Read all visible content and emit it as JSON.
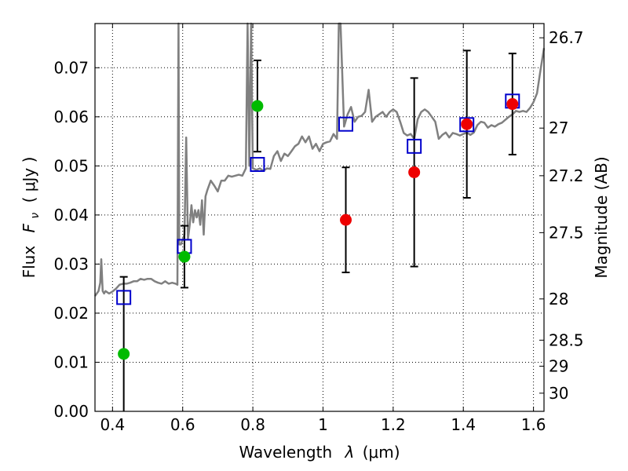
{
  "chart_data": {
    "type": "scatter",
    "title": "",
    "xlabel_prefix": "Wavelength",
    "xlabel_symbol": "λ",
    "xlabel_unit": "(μm)",
    "ylabel_prefix": "Flux",
    "ylabel_symbol": "F",
    "ylabel_sub": "ν",
    "ylabel_unit": "( μJy )",
    "y2label": "Magnitude (AB)",
    "xlim": [
      0.35,
      1.63
    ],
    "ylim": [
      0.0,
      0.079
    ],
    "grid": true,
    "x_ticks": [
      0.4,
      0.6,
      0.8,
      1.0,
      1.2,
      1.4,
      1.6
    ],
    "x_tick_labels": [
      "0.4",
      "0.6",
      "0.8",
      "1",
      "1.2",
      "1.4",
      "1.6"
    ],
    "y_ticks": [
      0.0,
      0.01,
      0.02,
      0.03,
      0.04,
      0.05,
      0.06,
      0.07
    ],
    "y_tick_labels": [
      "0.00",
      "0.01",
      "0.02",
      "0.03",
      "0.04",
      "0.05",
      "0.06",
      "0.07"
    ],
    "y2_ticks": [
      {
        "label": "26.7",
        "flux": 0.0761
      },
      {
        "label": "27",
        "flux": 0.0577
      },
      {
        "label": "27.2",
        "flux": 0.048
      },
      {
        "label": "27.5",
        "flux": 0.0364
      },
      {
        "label": "28",
        "flux": 0.0229
      },
      {
        "label": "28.5",
        "flux": 0.0145
      },
      {
        "label": "29",
        "flux": 0.0092
      },
      {
        "label": "30",
        "flux": 0.0037
      }
    ],
    "colors": {
      "model_line": "#808080",
      "model_points": "#0000cc",
      "ground_points": "#00bb00",
      "hst_points": "#ee0000",
      "error_bars": "#000000"
    },
    "series": [
      {
        "marker": "line",
        "x": [
          0.35,
          0.36,
          0.365,
          0.368,
          0.372,
          0.376,
          0.38,
          0.39,
          0.4,
          0.41,
          0.42,
          0.43,
          0.44,
          0.45,
          0.46,
          0.47,
          0.48,
          0.49,
          0.5,
          0.51,
          0.52,
          0.53,
          0.54,
          0.55,
          0.56,
          0.57,
          0.58,
          0.585,
          0.588,
          0.59,
          0.595,
          0.6,
          0.605,
          0.61,
          0.615,
          0.62,
          0.625,
          0.63,
          0.635,
          0.64,
          0.645,
          0.65,
          0.655,
          0.66,
          0.665,
          0.67,
          0.68,
          0.69,
          0.7,
          0.71,
          0.72,
          0.73,
          0.74,
          0.75,
          0.76,
          0.77,
          0.78,
          0.785,
          0.79,
          0.795,
          0.8,
          0.81,
          0.82,
          0.83,
          0.84,
          0.85,
          0.86,
          0.87,
          0.88,
          0.89,
          0.9,
          0.91,
          0.92,
          0.93,
          0.94,
          0.95,
          0.96,
          0.97,
          0.98,
          0.99,
          1.0,
          1.01,
          1.02,
          1.03,
          1.04,
          1.045,
          1.05,
          1.06,
          1.07,
          1.08,
          1.09,
          1.1,
          1.11,
          1.12,
          1.13,
          1.14,
          1.15,
          1.16,
          1.17,
          1.18,
          1.19,
          1.2,
          1.21,
          1.22,
          1.23,
          1.24,
          1.25,
          1.26,
          1.27,
          1.28,
          1.29,
          1.3,
          1.31,
          1.32,
          1.33,
          1.34,
          1.35,
          1.36,
          1.37,
          1.38,
          1.39,
          1.4,
          1.41,
          1.42,
          1.43,
          1.44,
          1.45,
          1.46,
          1.47,
          1.48,
          1.49,
          1.5,
          1.51,
          1.52,
          1.53,
          1.54,
          1.55,
          1.56,
          1.57,
          1.58,
          1.59,
          1.6,
          1.61,
          1.62,
          1.63
        ],
        "y": [
          0.0235,
          0.0245,
          0.0262,
          0.031,
          0.0245,
          0.024,
          0.0245,
          0.024,
          0.0244,
          0.025,
          0.0258,
          0.026,
          0.026,
          0.0262,
          0.0265,
          0.0265,
          0.027,
          0.0268,
          0.027,
          0.027,
          0.0265,
          0.0262,
          0.026,
          0.0265,
          0.026,
          0.0262,
          0.026,
          0.0258,
          0.079,
          0.034,
          0.034,
          0.035,
          0.036,
          0.0558,
          0.035,
          0.038,
          0.042,
          0.0385,
          0.041,
          0.0395,
          0.041,
          0.038,
          0.043,
          0.036,
          0.0438,
          0.045,
          0.047,
          0.046,
          0.0448,
          0.047,
          0.047,
          0.048,
          0.0478,
          0.048,
          0.0482,
          0.048,
          0.0495,
          0.079,
          0.05,
          0.079,
          0.0495,
          0.0492,
          0.0495,
          0.049,
          0.0495,
          0.0494,
          0.052,
          0.053,
          0.051,
          0.0525,
          0.052,
          0.053,
          0.054,
          0.0545,
          0.056,
          0.0548,
          0.056,
          0.0535,
          0.0545,
          0.053,
          0.0545,
          0.0548,
          0.055,
          0.0565,
          0.0555,
          0.079,
          0.079,
          0.058,
          0.0605,
          0.062,
          0.059,
          0.06,
          0.0602,
          0.061,
          0.0655,
          0.059,
          0.06,
          0.0605,
          0.061,
          0.06,
          0.061,
          0.0615,
          0.061,
          0.059,
          0.0567,
          0.0562,
          0.0565,
          0.0555,
          0.0595,
          0.061,
          0.0615,
          0.061,
          0.06,
          0.059,
          0.0555,
          0.0563,
          0.0568,
          0.0558,
          0.0567,
          0.0565,
          0.0562,
          0.0565,
          0.0568,
          0.0563,
          0.0568,
          0.0583,
          0.059,
          0.0588,
          0.0578,
          0.0583,
          0.058,
          0.0585,
          0.0588,
          0.0594,
          0.06,
          0.0605,
          0.0612,
          0.061,
          0.0612,
          0.061,
          0.0618,
          0.063,
          0.0648,
          0.0695,
          0.074
        ]
      },
      {
        "marker": "open-square",
        "x": [
          0.432,
          0.605,
          0.813,
          1.065,
          1.26,
          1.41,
          1.54
        ],
        "y": [
          0.0232,
          0.0336,
          0.0503,
          0.0585,
          0.054,
          0.0584,
          0.0632
        ]
      },
      {
        "marker": "filled-circle-green",
        "x": [
          0.432,
          0.605,
          0.813
        ],
        "y": [
          0.0117,
          0.0315,
          0.0622
        ],
        "yerr": [
          0.0157,
          0.0063,
          0.0093
        ]
      },
      {
        "marker": "filled-circle-red",
        "x": [
          1.065,
          1.26,
          1.41,
          1.54
        ],
        "y": [
          0.039,
          0.0487,
          0.0585,
          0.0626
        ],
        "yerr": [
          0.0107,
          0.0192,
          0.015,
          0.0103
        ]
      }
    ]
  }
}
